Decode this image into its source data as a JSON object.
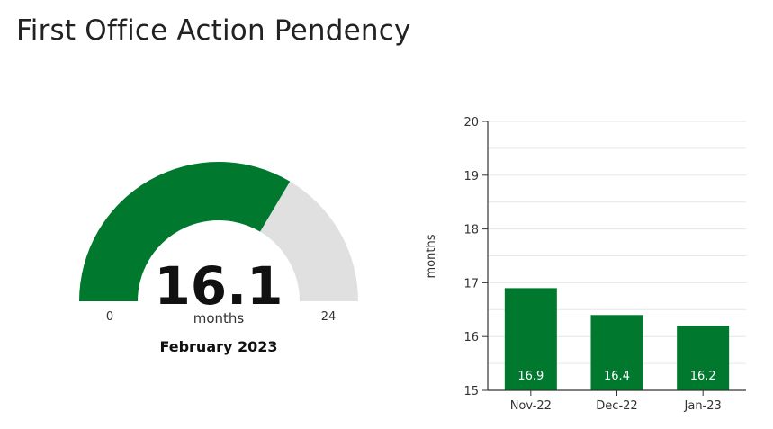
{
  "page": {
    "title": "First Office Action Pendency"
  },
  "chart_data": [
    {
      "type": "gauge",
      "value": 16.1,
      "value_text": "16.1",
      "unit": "months",
      "min": 0,
      "max": 24,
      "min_label": "0",
      "max_label": "24",
      "period": "February 2023",
      "colors": {
        "fill": "#00782d",
        "track": "#e0e0e0"
      }
    },
    {
      "type": "bar",
      "categories": [
        "Nov-22",
        "Dec-22",
        "Jan-23"
      ],
      "values": [
        16.9,
        16.4,
        16.2
      ],
      "value_labels": [
        "16.9",
        "16.4",
        "16.2"
      ],
      "ylabel": "months",
      "ylim": [
        15,
        20
      ],
      "yticks": [
        15,
        16,
        17,
        18,
        19,
        20
      ],
      "ytick_labels": [
        "15",
        "16",
        "17",
        "18",
        "19",
        "20"
      ],
      "grid": true,
      "colors": {
        "bar": "#00782d",
        "grid": "#e6e6e6",
        "axis": "#333333"
      }
    }
  ]
}
